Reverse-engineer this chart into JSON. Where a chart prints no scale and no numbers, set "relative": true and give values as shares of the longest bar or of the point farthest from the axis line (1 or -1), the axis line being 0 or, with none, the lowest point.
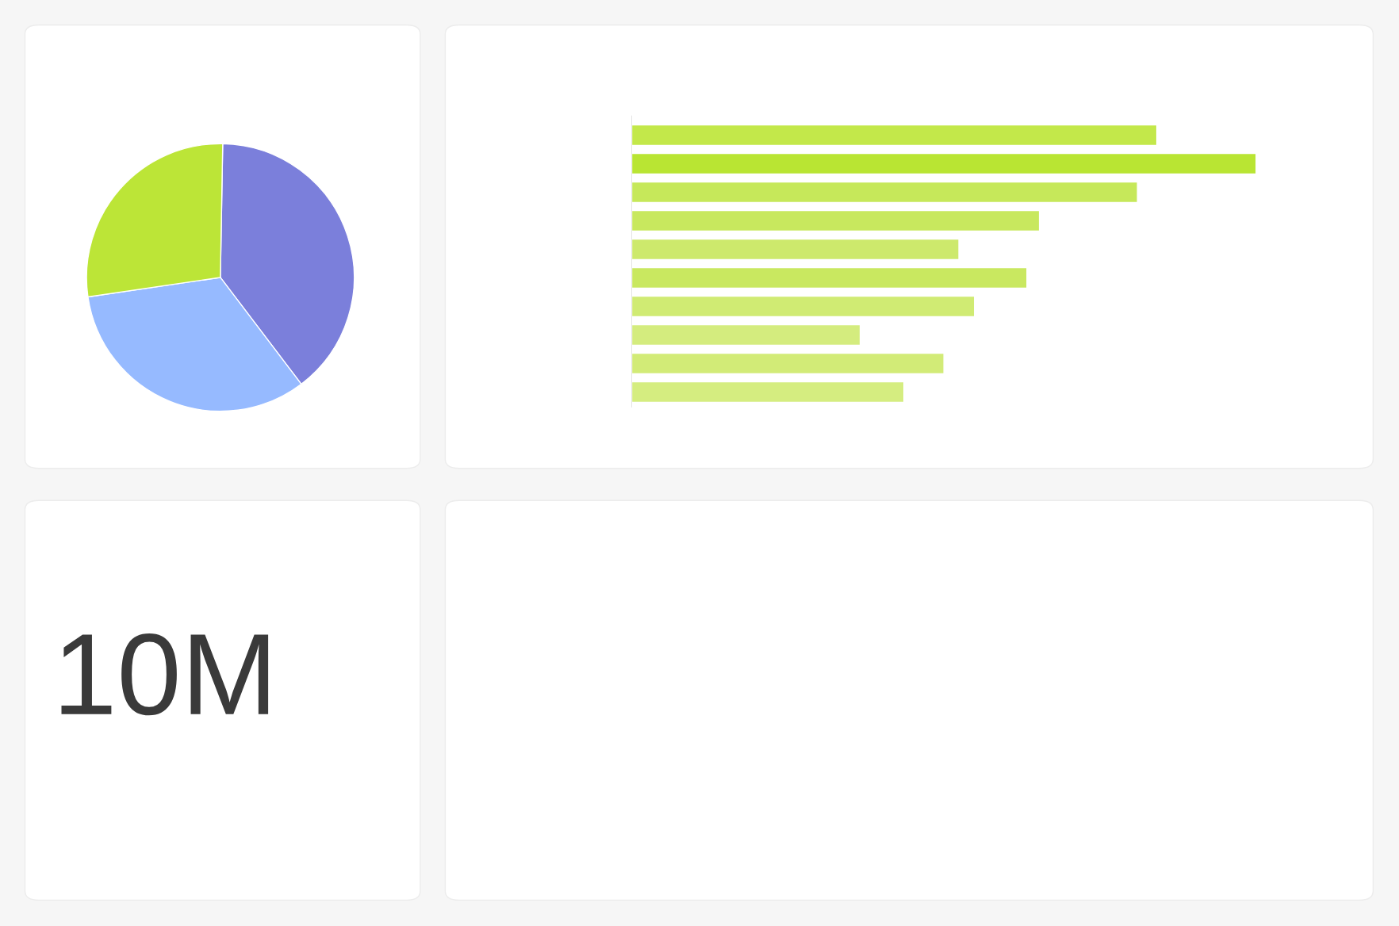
{
  "chart_data": [
    {
      "type": "pie",
      "categories": [
        null,
        null,
        null
      ],
      "values": [
        39.4,
        33.0,
        27.6
      ],
      "colors": [
        "#7b7fdb",
        "#96baff",
        "#bce537"
      ]
    },
    {
      "type": "bar",
      "orientation": "horizontal",
      "relative": true,
      "categories": [
        null,
        null,
        null,
        null,
        null,
        null,
        null,
        null,
        null,
        null
      ],
      "series": [
        {
          "values": [
            0.841,
            1.0,
            0.81,
            0.653,
            0.524,
            0.633,
            0.549,
            0.366,
            0.5,
            0.436
          ],
          "colors": [
            "#c3e84a",
            "#b9e533",
            "#c6e85a",
            "#c8e85e",
            "#cde96c",
            "#c9e860",
            "#d0eb73",
            "#d4ec7e",
            "#d2eb77",
            "#d5ed80"
          ]
        }
      ]
    },
    {
      "type": "other",
      "annotations": [
        "10M"
      ]
    }
  ]
}
